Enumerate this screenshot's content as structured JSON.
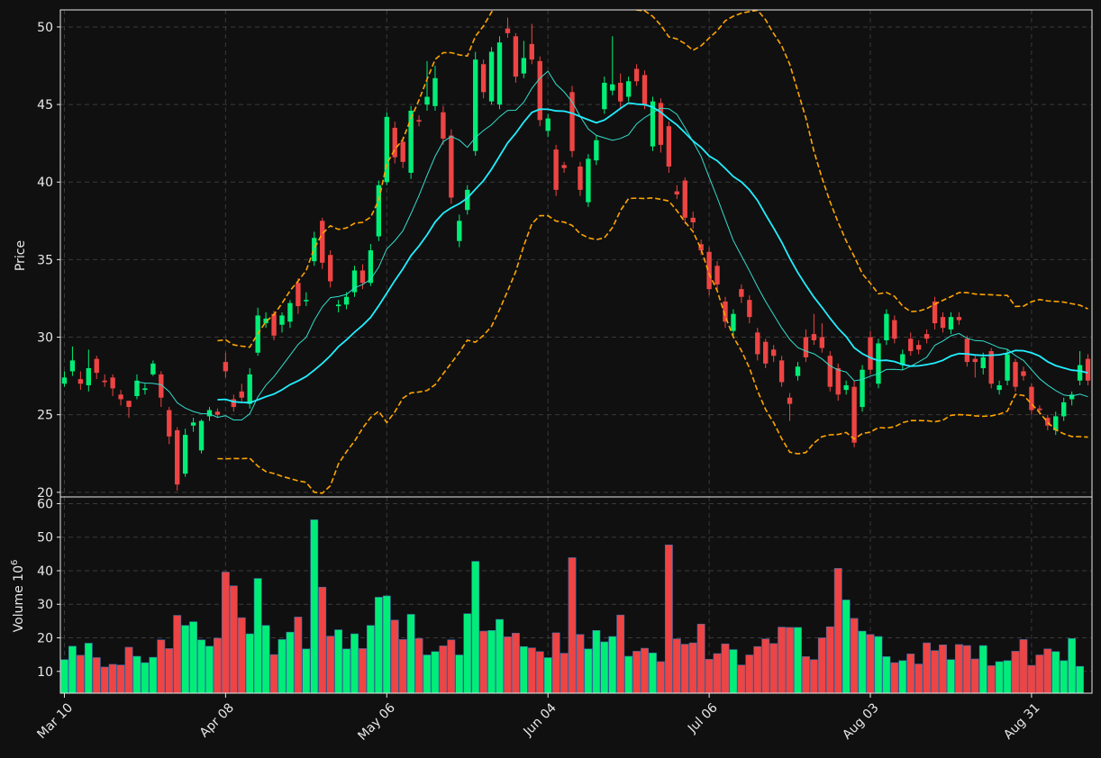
{
  "chart_data": {
    "type": "candlestick",
    "colors": {
      "background": "#101010",
      "grid": "#3a3a3a",
      "axis": "#e8e8e8",
      "up": "#00ee77",
      "down": "#ee4444",
      "sma_fast": "#33ddcc",
      "sma_slow": "#22eeff",
      "band": "#ffa500"
    },
    "price_panel": {
      "ylabel": "Price",
      "ylim": [
        19.7,
        51.1
      ],
      "yticks": [
        20,
        25,
        30,
        35,
        40,
        45,
        50
      ],
      "grid": true
    },
    "volume_panel": {
      "ylabel": "Volume  10",
      "ylabel_exponent": "6",
      "ylim": [
        3.5,
        62
      ],
      "yticks": [
        10,
        20,
        30,
        40,
        50,
        60
      ],
      "grid": true
    },
    "x_axis": {
      "tick_labels": [
        {
          "label": "Mar 10",
          "index": 0
        },
        {
          "label": "Apr 08",
          "index": 20
        },
        {
          "label": "May 06",
          "index": 40
        },
        {
          "label": "Jun 04",
          "index": 60
        },
        {
          "label": "Jul 06",
          "index": 80
        },
        {
          "label": "Aug 03",
          "index": 100
        },
        {
          "label": "Aug 31",
          "index": 120
        }
      ]
    },
    "candles": [
      [
        27.0,
        27.4,
        27.8,
        26.8
      ],
      [
        27.8,
        28.5,
        29.4,
        27.5
      ],
      [
        27.3,
        27.0,
        27.8,
        26.6
      ],
      [
        26.9,
        28.0,
        29.2,
        26.5
      ],
      [
        28.6,
        27.7,
        28.8,
        27.3
      ],
      [
        27.2,
        27.1,
        27.6,
        26.8
      ],
      [
        27.4,
        26.7,
        27.6,
        26.2
      ],
      [
        26.3,
        26.0,
        26.6,
        25.6
      ],
      [
        25.9,
        25.5,
        25.9,
        24.8
      ],
      [
        26.2,
        27.2,
        27.6,
        26.0
      ],
      [
        26.6,
        26.7,
        27.0,
        26.3
      ],
      [
        27.6,
        28.3,
        28.5,
        27.5
      ],
      [
        27.6,
        26.1,
        27.8,
        25.5
      ],
      [
        25.3,
        23.6,
        25.5,
        23.1
      ],
      [
        24.0,
        20.5,
        24.2,
        20.1
      ],
      [
        21.2,
        23.7,
        24.1,
        21.0
      ],
      [
        24.3,
        24.5,
        24.8,
        23.9
      ],
      [
        22.7,
        24.6,
        24.7,
        22.5
      ],
      [
        24.9,
        25.3,
        25.5,
        24.6
      ],
      [
        25.2,
        25.0,
        25.4,
        24.8
      ],
      [
        28.4,
        27.8,
        29.0,
        27.4
      ],
      [
        26.0,
        25.5,
        26.3,
        25.2
      ],
      [
        26.5,
        26.1,
        27.0,
        25.8
      ],
      [
        25.7,
        27.6,
        28.0,
        25.4
      ],
      [
        29.0,
        31.4,
        31.9,
        28.8
      ],
      [
        30.9,
        31.2,
        31.6,
        30.6
      ],
      [
        31.5,
        30.1,
        31.7,
        29.8
      ],
      [
        30.8,
        31.4,
        31.6,
        30.3
      ],
      [
        31.0,
        32.2,
        32.4,
        30.6
      ],
      [
        33.5,
        32.0,
        33.8,
        31.5
      ],
      [
        32.4,
        32.4,
        32.9,
        32.0
      ],
      [
        34.9,
        36.4,
        36.8,
        34.6
      ],
      [
        37.5,
        34.8,
        37.7,
        34.4
      ],
      [
        35.3,
        33.6,
        35.6,
        33.2
      ],
      [
        32.0,
        32.1,
        32.4,
        31.6
      ],
      [
        32.1,
        32.6,
        32.9,
        31.8
      ],
      [
        32.9,
        34.3,
        34.6,
        32.6
      ],
      [
        34.3,
        33.5,
        34.7,
        33.1
      ],
      [
        33.5,
        35.6,
        36.0,
        33.3
      ],
      [
        36.5,
        39.8,
        40.1,
        36.2
      ],
      [
        40.0,
        44.2,
        44.5,
        39.8
      ],
      [
        43.5,
        41.6,
        43.9,
        41.2
      ],
      [
        42.6,
        41.3,
        42.9,
        40.9
      ],
      [
        40.6,
        44.6,
        44.9,
        40.2
      ],
      [
        44.0,
        43.9,
        44.3,
        43.6
      ],
      [
        45.0,
        45.5,
        47.8,
        44.6
      ],
      [
        44.9,
        46.7,
        47.5,
        44.6
      ],
      [
        44.5,
        42.8,
        44.9,
        42.4
      ],
      [
        43.0,
        39.0,
        43.4,
        38.6
      ],
      [
        36.2,
        37.5,
        37.9,
        35.8
      ],
      [
        38.2,
        39.5,
        39.8,
        37.9
      ],
      [
        42.0,
        47.9,
        48.4,
        41.7
      ],
      [
        47.6,
        45.8,
        47.9,
        45.4
      ],
      [
        45.2,
        48.4,
        48.7,
        45.0
      ],
      [
        45.0,
        49.0,
        49.4,
        44.7
      ],
      [
        49.9,
        49.6,
        50.6,
        49.3
      ],
      [
        49.4,
        46.8,
        49.6,
        46.4
      ],
      [
        47.0,
        48.0,
        49.1,
        46.7
      ],
      [
        48.9,
        47.9,
        50.2,
        47.6
      ],
      [
        47.8,
        44.0,
        48.1,
        43.6
      ],
      [
        43.3,
        44.1,
        44.4,
        42.9
      ],
      [
        42.1,
        39.5,
        42.4,
        39.1
      ],
      [
        41.1,
        40.9,
        41.3,
        40.6
      ],
      [
        45.8,
        42.0,
        46.2,
        41.6
      ],
      [
        41.0,
        39.5,
        41.3,
        39.1
      ],
      [
        38.7,
        41.5,
        41.8,
        38.4
      ],
      [
        41.4,
        42.7,
        43.0,
        41.1
      ],
      [
        44.7,
        46.4,
        46.8,
        44.4
      ],
      [
        45.9,
        46.3,
        49.4,
        45.6
      ],
      [
        46.4,
        45.2,
        47.0,
        44.8
      ],
      [
        45.5,
        46.5,
        46.8,
        45.2
      ],
      [
        47.3,
        46.5,
        47.6,
        46.2
      ],
      [
        46.9,
        45.0,
        47.2,
        44.7
      ],
      [
        42.3,
        45.2,
        45.5,
        42.0
      ],
      [
        45.1,
        42.4,
        45.4,
        41.9
      ],
      [
        43.6,
        41.0,
        43.9,
        40.6
      ],
      [
        39.4,
        39.2,
        39.8,
        38.9
      ],
      [
        40.1,
        37.7,
        40.3,
        37.3
      ],
      [
        37.7,
        37.4,
        38.1,
        37.0
      ],
      [
        36.0,
        35.6,
        36.3,
        35.3
      ],
      [
        35.5,
        33.1,
        35.8,
        32.7
      ],
      [
        34.6,
        33.4,
        34.9,
        33.0
      ],
      [
        32.3,
        31.0,
        32.6,
        30.6
      ],
      [
        30.4,
        31.5,
        31.8,
        30.1
      ],
      [
        33.1,
        32.6,
        33.4,
        32.2
      ],
      [
        32.4,
        31.3,
        32.7,
        30.9
      ],
      [
        30.3,
        28.9,
        30.6,
        28.5
      ],
      [
        29.7,
        28.3,
        29.9,
        28.0
      ],
      [
        29.2,
        28.8,
        29.5,
        28.4
      ],
      [
        28.5,
        27.1,
        28.8,
        26.8
      ],
      [
        26.1,
        25.7,
        26.4,
        24.6
      ],
      [
        27.5,
        28.1,
        28.4,
        27.2
      ],
      [
        30.0,
        28.7,
        30.5,
        28.4
      ],
      [
        30.2,
        29.8,
        31.5,
        29.5
      ],
      [
        30.0,
        29.3,
        30.9,
        29.0
      ],
      [
        28.8,
        26.8,
        29.1,
        26.5
      ],
      [
        28.0,
        26.3,
        28.3,
        25.9
      ],
      [
        26.6,
        26.9,
        27.2,
        26.3
      ],
      [
        26.8,
        23.2,
        27.2,
        22.9
      ],
      [
        25.5,
        27.9,
        28.2,
        25.2
      ],
      [
        30.0,
        27.9,
        30.4,
        27.6
      ],
      [
        27.0,
        29.6,
        29.9,
        26.7
      ],
      [
        29.8,
        31.5,
        31.8,
        29.5
      ],
      [
        31.1,
        29.9,
        31.4,
        29.6
      ],
      [
        28.2,
        28.9,
        29.2,
        27.9
      ],
      [
        29.9,
        29.1,
        30.3,
        28.8
      ],
      [
        29.5,
        29.2,
        29.8,
        28.9
      ],
      [
        30.2,
        29.9,
        30.5,
        29.6
      ],
      [
        32.3,
        30.9,
        32.6,
        30.5
      ],
      [
        31.3,
        30.6,
        31.6,
        30.3
      ],
      [
        30.5,
        31.3,
        31.6,
        30.2
      ],
      [
        31.3,
        31.1,
        31.6,
        30.8
      ],
      [
        29.9,
        28.4,
        30.1,
        28.1
      ],
      [
        28.6,
        28.4,
        28.8,
        27.4
      ],
      [
        28.0,
        28.7,
        29.0,
        27.6
      ],
      [
        29.1,
        27.0,
        29.3,
        26.7
      ],
      [
        26.6,
        26.9,
        27.2,
        26.3
      ],
      [
        27.2,
        28.9,
        29.2,
        26.9
      ],
      [
        28.4,
        26.8,
        28.6,
        26.5
      ],
      [
        27.8,
        27.5,
        28.1,
        27.2
      ],
      [
        26.8,
        25.3,
        27.0,
        25.0
      ],
      [
        25.4,
        25.3,
        25.6,
        25.0
      ],
      [
        24.8,
        24.3,
        25.0,
        24.0
      ],
      [
        24.0,
        24.9,
        25.2,
        23.7
      ],
      [
        24.9,
        25.8,
        26.1,
        24.6
      ],
      [
        26.0,
        26.3,
        26.5,
        25.6
      ],
      [
        27.2,
        28.2,
        29.1,
        26.9
      ],
      [
        28.6,
        27.2,
        28.9,
        26.9
      ]
    ],
    "volume": [
      13.5,
      17.5,
      14.8,
      18.4,
      14.1,
      11.3,
      12.1,
      11.9,
      17.2,
      14.5,
      12.6,
      14.2,
      19.4,
      16.8,
      26.7,
      23.7,
      24.8,
      19.4,
      17.5,
      19.9,
      39.6,
      35.5,
      26.0,
      21.2,
      37.7,
      23.7,
      15.0,
      19.5,
      21.7,
      26.2,
      16.7,
      55.2,
      35.1,
      20.5,
      22.4,
      16.7,
      21.2,
      16.8,
      23.7,
      32.1,
      32.5,
      25.3,
      19.5,
      27.0,
      19.8,
      14.9,
      15.9,
      17.6,
      19.4,
      14.9,
      27.2,
      42.8,
      22.0,
      22.2,
      25.5,
      20.3,
      21.4,
      17.4,
      17.0,
      15.9,
      14.1,
      21.5,
      15.4,
      43.9,
      21.0,
      16.7,
      22.2,
      18.8,
      20.4,
      26.8,
      14.5,
      16.0,
      16.9,
      15.5,
      12.9,
      47.7,
      19.7,
      18.1,
      18.5,
      24.1,
      13.6,
      15.3,
      18.2,
      16.5,
      11.9,
      14.9,
      17.4,
      19.7,
      18.3,
      23.2,
      23.1,
      23.1,
      14.4,
      13.5,
      20.0,
      23.3,
      40.7,
      31.3,
      25.8,
      22.0,
      21.0,
      20.4,
      14.4,
      12.6,
      13.2,
      15.2,
      12.2,
      18.5,
      16.2,
      17.9,
      13.5,
      18.0,
      17.7,
      13.7,
      17.7,
      11.7,
      12.9,
      13.2,
      16.0,
      19.5,
      11.8,
      14.9,
      16.7,
      15.9,
      13.2,
      19.8,
      11.5
    ]
  }
}
